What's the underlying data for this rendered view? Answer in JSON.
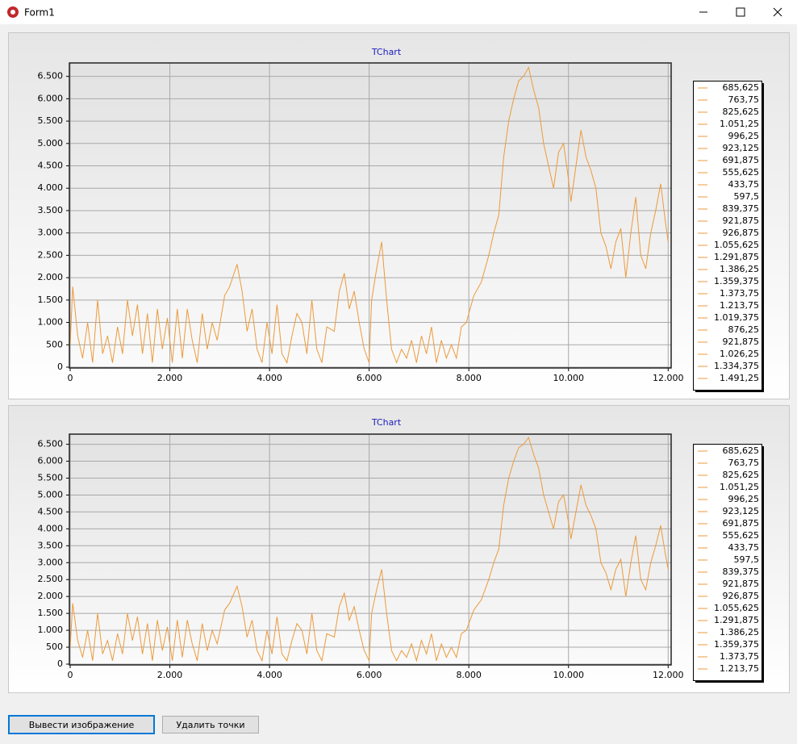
{
  "window": {
    "title": "Form1"
  },
  "chart_data": [
    {
      "type": "line",
      "title": "TChart",
      "xlim": [
        0,
        12060
      ],
      "ylim": [
        0,
        6800
      ],
      "grid": true,
      "xticks": [
        0,
        {
          "value": 2000,
          "label": "2.000"
        },
        {
          "value": 4000,
          "label": "4.000"
        },
        {
          "value": 6000,
          "label": "6.000"
        },
        {
          "value": 8000,
          "label": "8.000"
        },
        {
          "value": 10000,
          "label": "10.000"
        },
        {
          "value": 12000,
          "label": "12.000"
        }
      ],
      "yticks": [
        0,
        500,
        {
          "value": 1000,
          "label": "1.000"
        },
        {
          "value": 1500,
          "label": "1.500"
        },
        {
          "value": 2000,
          "label": "2.000"
        },
        {
          "value": 2500,
          "label": "2.500"
        },
        {
          "value": 3000,
          "label": "3.000"
        },
        {
          "value": 3500,
          "label": "3.500"
        },
        {
          "value": 4000,
          "label": "4.000"
        },
        {
          "value": 4500,
          "label": "4.500"
        },
        {
          "value": 5000,
          "label": "5.000"
        },
        {
          "value": 5500,
          "label": "5.500"
        },
        {
          "value": 6000,
          "label": "6.000"
        },
        {
          "value": 6500,
          "label": "6.500"
        }
      ],
      "series": [
        {
          "color": "#ec9a3a",
          "x": [
            0,
            50,
            150,
            250,
            350,
            450,
            550,
            650,
            750,
            850,
            950,
            1050,
            1150,
            1250,
            1350,
            1450,
            1550,
            1650,
            1750,
            1850,
            1950,
            2050,
            2150,
            2250,
            2350,
            2450,
            2550,
            2650,
            2750,
            2850,
            2950,
            3100,
            3200,
            3350,
            3450,
            3550,
            3650,
            3750,
            3850,
            3950,
            4050,
            4150,
            4250,
            4350,
            4450,
            4550,
            4650,
            4750,
            4850,
            4950,
            5050,
            5150,
            5300,
            5400,
            5500,
            5600,
            5700,
            5800,
            5900,
            6000,
            6050,
            6150,
            6250,
            6350,
            6450,
            6550,
            6650,
            6750,
            6850,
            6950,
            7050,
            7150,
            7250,
            7350,
            7450,
            7550,
            7650,
            7750,
            7850,
            7950,
            8100,
            8250,
            8400,
            8500,
            8600,
            8700,
            8800,
            8900,
            9000,
            9100,
            9200,
            9300,
            9400,
            9500,
            9600,
            9700,
            9800,
            9900,
            10000,
            10050,
            10150,
            10250,
            10350,
            10450,
            10550,
            10650,
            10750,
            10850,
            10950,
            11050,
            11150,
            11250,
            11350,
            11450,
            11550,
            11650,
            11750,
            11850,
            11950,
            12000
          ],
          "values": [
            500,
            1800,
            700,
            200,
            1000,
            100,
            1500,
            300,
            700,
            100,
            900,
            300,
            1500,
            700,
            1400,
            300,
            1200,
            100,
            1300,
            400,
            1100,
            100,
            1300,
            200,
            1300,
            600,
            100,
            1200,
            400,
            1000,
            600,
            1600,
            1800,
            2300,
            1700,
            800,
            1300,
            400,
            100,
            1000,
            300,
            1400,
            300,
            100,
            700,
            1200,
            1000,
            300,
            1500,
            400,
            100,
            900,
            800,
            1700,
            2100,
            1300,
            1700,
            1000,
            400,
            100,
            1500,
            2200,
            2800,
            1500,
            400,
            100,
            400,
            200,
            600,
            100,
            700,
            300,
            900,
            100,
            600,
            200,
            500,
            200,
            900,
            1000,
            1600,
            1900,
            2500,
            3000,
            3400,
            4700,
            5500,
            6000,
            6400,
            6500,
            6700,
            6200,
            5800,
            5000,
            4500,
            4000,
            4800,
            5000,
            4200,
            3700,
            4500,
            5300,
            4700,
            4400,
            4000,
            3000,
            2700,
            2200,
            2800,
            3100,
            2000,
            3000,
            3800,
            2500,
            2200,
            3000,
            3500,
            4100,
            3200,
            2800
          ]
        }
      ],
      "legend": [
        {
          "value": 685.625,
          "label": "685,625"
        },
        {
          "value": 763.75,
          "label": "763,75"
        },
        {
          "value": 825.625,
          "label": "825,625"
        },
        {
          "value": 1051.25,
          "label": "1.051,25"
        },
        {
          "value": 996.25,
          "label": "996,25"
        },
        {
          "value": 923.125,
          "label": "923,125"
        },
        {
          "value": 691.875,
          "label": "691,875"
        },
        {
          "value": 555.625,
          "label": "555,625"
        },
        {
          "value": 433.75,
          "label": "433,75"
        },
        {
          "value": 597.5,
          "label": "597,5"
        },
        {
          "value": 839.375,
          "label": "839,375"
        },
        {
          "value": 921.875,
          "label": "921,875"
        },
        {
          "value": 926.875,
          "label": "926,875"
        },
        {
          "value": 1055.625,
          "label": "1.055,625"
        },
        {
          "value": 1291.875,
          "label": "1.291,875"
        },
        {
          "value": 1386.25,
          "label": "1.386,25"
        },
        {
          "value": 1359.375,
          "label": "1.359,375"
        },
        {
          "value": 1373.75,
          "label": "1.373,75"
        },
        {
          "value": 1213.75,
          "label": "1.213,75"
        },
        {
          "value": 1019.375,
          "label": "1.019,375"
        },
        {
          "value": 876.25,
          "label": "876,25"
        },
        {
          "value": 921.875,
          "label": "921,875"
        },
        {
          "value": 1026.25,
          "label": "1.026,25"
        },
        {
          "value": 1334.375,
          "label": "1.334,375"
        },
        {
          "value": 1491.25,
          "label": "1.491,25"
        }
      ]
    },
    {
      "type": "line",
      "title": "TChart",
      "xlim": [
        0,
        12060
      ],
      "ylim": [
        0,
        6800
      ],
      "grid": true,
      "xticks": [
        0,
        {
          "value": 2000,
          "label": "2.000"
        },
        {
          "value": 4000,
          "label": "4.000"
        },
        {
          "value": 6000,
          "label": "6.000"
        },
        {
          "value": 8000,
          "label": "8.000"
        },
        {
          "value": 10000,
          "label": "10.000"
        },
        {
          "value": 12000,
          "label": "12.000"
        }
      ],
      "yticks": [
        0,
        500,
        {
          "value": 1000,
          "label": "1.000"
        },
        {
          "value": 1500,
          "label": "1.500"
        },
        {
          "value": 2000,
          "label": "2.000"
        },
        {
          "value": 2500,
          "label": "2.500"
        },
        {
          "value": 3000,
          "label": "3.000"
        },
        {
          "value": 3500,
          "label": "3.500"
        },
        {
          "value": 4000,
          "label": "4.000"
        },
        {
          "value": 4500,
          "label": "4.500"
        },
        {
          "value": 5000,
          "label": "5.000"
        },
        {
          "value": 5500,
          "label": "5.500"
        },
        {
          "value": 6000,
          "label": "6.000"
        },
        {
          "value": 6500,
          "label": "6.500"
        }
      ],
      "series": [
        {
          "color": "#ec9a3a",
          "x": [
            0,
            50,
            150,
            250,
            350,
            450,
            550,
            650,
            750,
            850,
            950,
            1050,
            1150,
            1250,
            1350,
            1450,
            1550,
            1650,
            1750,
            1850,
            1950,
            2050,
            2150,
            2250,
            2350,
            2450,
            2550,
            2650,
            2750,
            2850,
            2950,
            3100,
            3200,
            3350,
            3450,
            3550,
            3650,
            3750,
            3850,
            3950,
            4050,
            4150,
            4250,
            4350,
            4450,
            4550,
            4650,
            4750,
            4850,
            4950,
            5050,
            5150,
            5300,
            5400,
            5500,
            5600,
            5700,
            5800,
            5900,
            6000,
            6050,
            6150,
            6250,
            6350,
            6450,
            6550,
            6650,
            6750,
            6850,
            6950,
            7050,
            7150,
            7250,
            7350,
            7450,
            7550,
            7650,
            7750,
            7850,
            7950,
            8100,
            8250,
            8400,
            8500,
            8600,
            8700,
            8800,
            8900,
            9000,
            9100,
            9200,
            9300,
            9400,
            9500,
            9600,
            9700,
            9800,
            9900,
            10000,
            10050,
            10150,
            10250,
            10350,
            10450,
            10550,
            10650,
            10750,
            10850,
            10950,
            11050,
            11150,
            11250,
            11350,
            11450,
            11550,
            11650,
            11750,
            11850,
            11950,
            12000
          ],
          "values": [
            500,
            1800,
            700,
            200,
            1000,
            100,
            1500,
            300,
            700,
            100,
            900,
            300,
            1500,
            700,
            1400,
            300,
            1200,
            100,
            1300,
            400,
            1100,
            100,
            1300,
            200,
            1300,
            600,
            100,
            1200,
            400,
            1000,
            600,
            1600,
            1800,
            2300,
            1700,
            800,
            1300,
            400,
            100,
            1000,
            300,
            1400,
            300,
            100,
            700,
            1200,
            1000,
            300,
            1500,
            400,
            100,
            900,
            800,
            1700,
            2100,
            1300,
            1700,
            1000,
            400,
            100,
            1500,
            2200,
            2800,
            1500,
            400,
            100,
            400,
            200,
            600,
            100,
            700,
            300,
            900,
            100,
            600,
            200,
            500,
            200,
            900,
            1000,
            1600,
            1900,
            2500,
            3000,
            3400,
            4700,
            5500,
            6000,
            6400,
            6500,
            6700,
            6200,
            5800,
            5000,
            4500,
            4000,
            4800,
            5000,
            4200,
            3700,
            4500,
            5300,
            4700,
            4400,
            4000,
            3000,
            2700,
            2200,
            2800,
            3100,
            2000,
            3000,
            3800,
            2500,
            2200,
            3000,
            3500,
            4100,
            3200,
            2800
          ]
        }
      ],
      "legend": [
        {
          "value": 685.625,
          "label": "685,625"
        },
        {
          "value": 763.75,
          "label": "763,75"
        },
        {
          "value": 825.625,
          "label": "825,625"
        },
        {
          "value": 1051.25,
          "label": "1.051,25"
        },
        {
          "value": 996.25,
          "label": "996,25"
        },
        {
          "value": 923.125,
          "label": "923,125"
        },
        {
          "value": 691.875,
          "label": "691,875"
        },
        {
          "value": 555.625,
          "label": "555,625"
        },
        {
          "value": 433.75,
          "label": "433,75"
        },
        {
          "value": 597.5,
          "label": "597,5"
        },
        {
          "value": 839.375,
          "label": "839,375"
        },
        {
          "value": 921.875,
          "label": "921,875"
        },
        {
          "value": 926.875,
          "label": "926,875"
        },
        {
          "value": 1055.625,
          "label": "1.055,625"
        },
        {
          "value": 1291.875,
          "label": "1.291,875"
        },
        {
          "value": 1386.25,
          "label": "1.386,25"
        },
        {
          "value": 1359.375,
          "label": "1.359,375"
        },
        {
          "value": 1373.75,
          "label": "1.373,75"
        },
        {
          "value": 1213.75,
          "label": "1.213,75"
        }
      ]
    }
  ],
  "buttons": [
    "Вывести изображение",
    "Удалить точки"
  ]
}
